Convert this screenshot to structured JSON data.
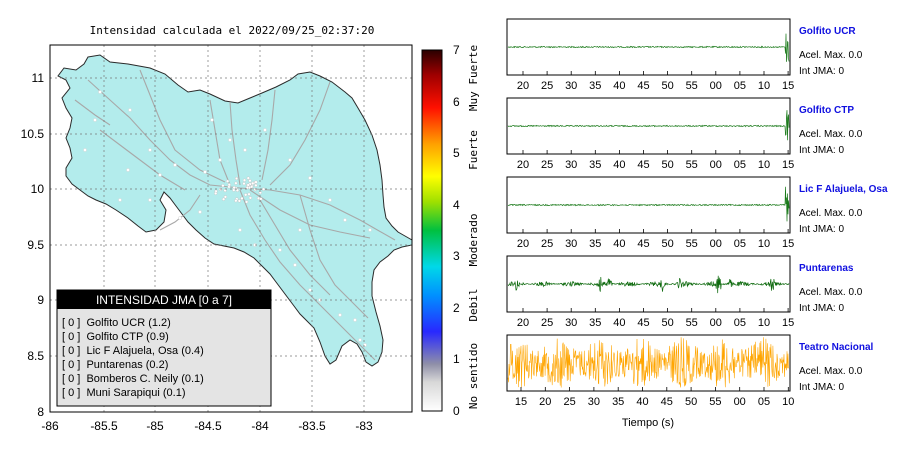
{
  "map": {
    "title": "Intensidad calculada el 2022/09/25_02:37:20",
    "lat_ticks": [
      "11",
      "10.5",
      "10",
      "9.5",
      "9",
      "8.5",
      "8"
    ],
    "lon_ticks": [
      "-86",
      "-85.5",
      "-85",
      "-84.5",
      "-84",
      "-83.5",
      "-83"
    ],
    "land_color": "#b3ecec",
    "legend": {
      "title": "INTENSIDAD JMA [0 a 7]",
      "items": [
        "[ 0 ]  Golfito UCR (1.2)",
        "[ 0 ]  Golfito CTP (0.9)",
        "[ 0 ]  Lic F Alajuela, Osa (0.4)",
        "[ 0 ]  Puntarenas (0.2)",
        "[ 0 ]  Bomberos C. Neily (0.1)",
        "[ 0 ]  Muni Sarapiqui (0.1)"
      ]
    }
  },
  "colorbar": {
    "ticks": [
      "7",
      "6",
      "5",
      "4",
      "3",
      "2",
      "1",
      "0"
    ],
    "categories": [
      "Muy Fuerte",
      "Fuerte",
      "Moderado",
      "Debil",
      "No sentido"
    ]
  },
  "traces": {
    "xlabel": "Tiempo (s)",
    "panels": [
      {
        "name": "Golfito UCR",
        "acel": "Acel. Max. 0.0",
        "int": "Int JMA: 0",
        "color": "#1a7a1a",
        "ticks": [
          "20",
          "25",
          "30",
          "35",
          "40",
          "45",
          "50",
          "55",
          "00",
          "05",
          "10",
          "15"
        ]
      },
      {
        "name": "Golfito CTP",
        "acel": "Acel. Max. 0.0",
        "int": "Int JMA: 0",
        "color": "#1a7a1a",
        "ticks": [
          "20",
          "25",
          "30",
          "35",
          "40",
          "45",
          "50",
          "55",
          "00",
          "05",
          "10",
          "15"
        ]
      },
      {
        "name": "Lic F Alajuela, Osa",
        "acel": "Acel. Max. 0.0",
        "int": "Int JMA: 0",
        "color": "#1a7a1a",
        "ticks": [
          "20",
          "25",
          "30",
          "35",
          "40",
          "45",
          "50",
          "55",
          "00",
          "05",
          "10",
          "15"
        ]
      },
      {
        "name": "Puntarenas",
        "acel": "Acel. Max. 0.0",
        "int": "Int JMA: 0",
        "color": "#0e6a0e",
        "ticks": [
          "20",
          "25",
          "30",
          "35",
          "40",
          "45",
          "50",
          "55",
          "00",
          "05",
          "10",
          "15"
        ]
      },
      {
        "name": "Teatro Nacional",
        "acel": "Acel. Max. 0.0",
        "int": "Int JMA: 0",
        "color": "#ffa500",
        "ticks": [
          "15",
          "20",
          "25",
          "30",
          "35",
          "40",
          "45",
          "50",
          "55",
          "00",
          "05",
          "10"
        ]
      }
    ]
  }
}
